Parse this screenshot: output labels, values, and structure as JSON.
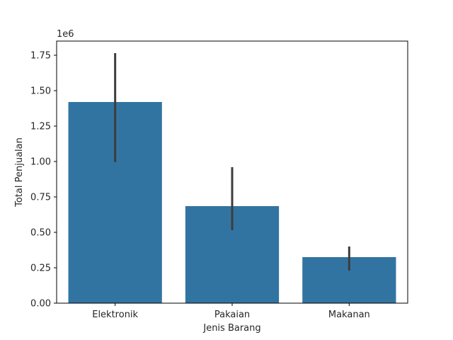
{
  "chart_data": {
    "type": "bar",
    "categories": [
      "Elektronik",
      "Pakaian",
      "Makanan"
    ],
    "values": [
      1420000,
      685000,
      325000
    ],
    "error_bars": [
      {
        "low": 995000,
        "high": 1765000
      },
      {
        "low": 515000,
        "high": 960000
      },
      {
        "low": 230000,
        "high": 400000
      }
    ],
    "xlabel": "Jenis Barang",
    "ylabel": "Total Penjualan",
    "y_offset_label": "1e6",
    "ylim": [
      0,
      1850000
    ],
    "y_ticks": [
      0,
      250000,
      500000,
      750000,
      1000000,
      1250000,
      1500000,
      1750000
    ],
    "y_tick_labels": [
      "0.00",
      "0.25",
      "0.50",
      "0.75",
      "1.00",
      "1.25",
      "1.50",
      "1.75"
    ],
    "bar_color": "#3274a1",
    "error_color": "#3d3d3d",
    "grid": false,
    "legend": "none"
  }
}
